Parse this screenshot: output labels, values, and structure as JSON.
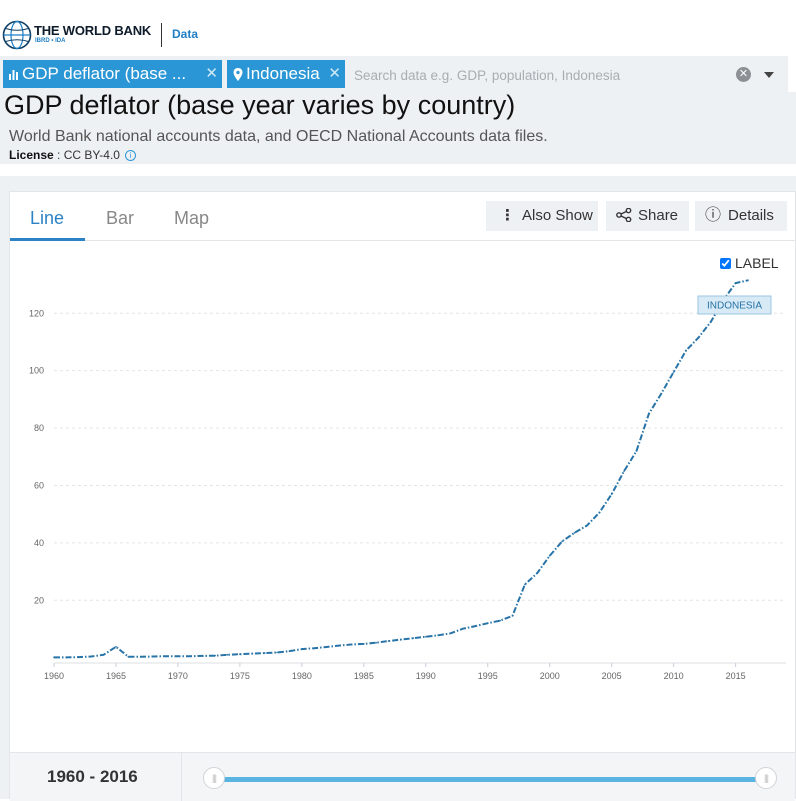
{
  "brand": {
    "name": "THE WORLD BANK",
    "sub": "IBRD • IDA",
    "section": "Data"
  },
  "search": {
    "chips": [
      {
        "label": "GDP deflator (base ...",
        "icon": "bar-chart-icon"
      },
      {
        "label": "Indonesia",
        "icon": "map-pin-icon"
      }
    ],
    "remove_glyph": "✕",
    "placeholder": "Search data e.g. GDP, population, Indonesia",
    "clear_glyph": "✕"
  },
  "indicator": {
    "title": "GDP deflator (base year varies by country)",
    "source": "World Bank national accounts data, and OECD National Accounts data files.",
    "license_label": "License",
    "license_value": " : CC BY-4.0",
    "info_glyph": "i"
  },
  "tabs": [
    {
      "label": "Line",
      "active": true
    },
    {
      "label": "Bar",
      "active": false
    },
    {
      "label": "Map",
      "active": false
    }
  ],
  "toolbar": {
    "also_show": "Also Show",
    "share": "Share",
    "details": "Details",
    "also_show_glyph": "⋮",
    "share_glyph": "<",
    "details_glyph": "ⓘ"
  },
  "label_toggle": {
    "text": "LABEL",
    "checked": true
  },
  "timeline": {
    "start": "1960",
    "separator": " - ",
    "end": "2016",
    "handle_glyph": "|||"
  },
  "colors": {
    "accent": "#2b96d6",
    "series": "#2873a7",
    "grid": "#e2e5e8",
    "label_bg": "#d7eaf6"
  },
  "chart_data": {
    "type": "line",
    "title": "",
    "xlabel": "",
    "ylabel": "",
    "xlim": [
      1960,
      2016
    ],
    "ylim": [
      0,
      130
    ],
    "x_ticks": [
      1960,
      1965,
      1970,
      1975,
      1980,
      1985,
      1990,
      1995,
      2000,
      2005,
      2010,
      2015
    ],
    "y_ticks": [
      20,
      40,
      60,
      80,
      100,
      120
    ],
    "grid": true,
    "series": [
      {
        "name": "INDONESIA",
        "line_style": "dash-dot",
        "x": [
          1960,
          1961,
          1962,
          1963,
          1964,
          1965,
          1966,
          1967,
          1968,
          1969,
          1970,
          1971,
          1972,
          1973,
          1974,
          1975,
          1976,
          1977,
          1978,
          1979,
          1980,
          1981,
          1982,
          1983,
          1984,
          1985,
          1986,
          1987,
          1988,
          1989,
          1990,
          1991,
          1992,
          1993,
          1994,
          1995,
          1996,
          1997,
          1998,
          1999,
          2000,
          2001,
          2002,
          2003,
          2004,
          2005,
          2006,
          2007,
          2008,
          2009,
          2010,
          2011,
          2012,
          2013,
          2014,
          2015,
          2016
        ],
        "y": [
          0.1,
          0.1,
          0.2,
          0.4,
          1.0,
          3.8,
          0.3,
          0.3,
          0.4,
          0.5,
          0.5,
          0.5,
          0.6,
          0.7,
          1.0,
          1.2,
          1.4,
          1.6,
          1.8,
          2.3,
          3.0,
          3.3,
          3.7,
          4.2,
          4.6,
          4.8,
          5.2,
          5.8,
          6.3,
          6.8,
          7.3,
          7.8,
          8.5,
          10.1,
          11.0,
          12.0,
          12.9,
          14.6,
          25.5,
          29.5,
          35.5,
          40.5,
          43.5,
          46.0,
          50.5,
          57.0,
          65.0,
          72.0,
          85.0,
          92.0,
          99.5,
          107.0,
          111.5,
          117.0,
          124.5,
          130.5,
          131.5
        ]
      }
    ],
    "end_label": "INDONESIA"
  }
}
